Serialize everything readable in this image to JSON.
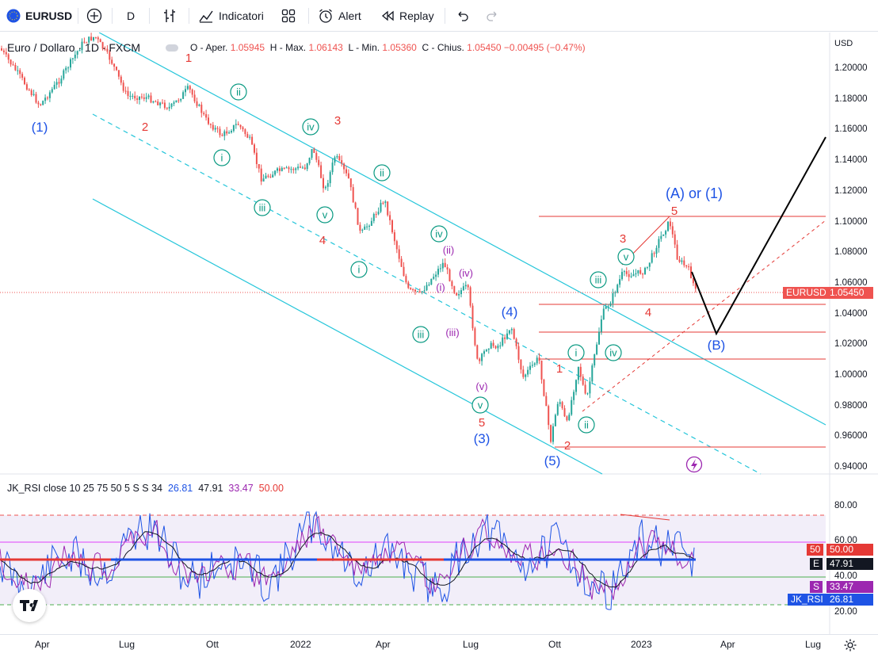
{
  "toolbar": {
    "symbol": "EURUSD",
    "interval": "D",
    "indicators_label": "Indicatori",
    "alert_label": "Alert",
    "replay_label": "Replay"
  },
  "legend": {
    "title": "Euro / Dollaro · 1D · FXCM",
    "o_label": "O - Aper.",
    "o_value": "1.05945",
    "h_label": "H - Max.",
    "h_value": "1.06143",
    "l_label": "L - Min.",
    "l_value": "1.05360",
    "c_label": "C - Chius.",
    "c_value": "1.05450",
    "change": "−0.00495 (−0.47%)"
  },
  "price_axis": {
    "currency": "USD",
    "labels": [
      "1.20000",
      "1.18000",
      "1.16000",
      "1.14000",
      "1.12000",
      "1.10000",
      "1.08000",
      "1.06000",
      "1.04000",
      "1.02000",
      "1.00000",
      "0.98000",
      "0.96000",
      "0.94000"
    ],
    "symbol_tag": "EURUSD",
    "price_tag": "1.05450"
  },
  "rsi": {
    "legend_name": "JK_RSI",
    "legend_params": "close 10 25 75 50 5 S S 34",
    "v1": "26.81",
    "v2": "47.91",
    "v3": "33.47",
    "v4": "50.00",
    "axis_labels": [
      "80.00",
      "60.00",
      "40.00",
      "20.00"
    ],
    "tag_50_label": "50",
    "tag_50_value": "50.00",
    "tag_e_label": "E",
    "tag_e_value": "47.91",
    "tag_s_label": "S",
    "tag_s_value": "33.47",
    "tag_jk_label": "JK_RSI",
    "tag_jk_value": "26.81"
  },
  "time_axis": [
    "Apr",
    "Lug",
    "Ott",
    "2022",
    "Apr",
    "Lug",
    "Ott",
    "2023",
    "Apr",
    "Lug"
  ],
  "colors": {
    "up": "#26a69a",
    "down": "#ef5350",
    "channel": "#26c6da",
    "wave_blue": "#1e53e5",
    "wave_red": "#e53935",
    "wave_green": "#089981",
    "wave_purple": "#9c27b0"
  },
  "wave_labels": {
    "blue": [
      "(1)",
      "(3)",
      "(4)",
      "(5)",
      "(B)"
    ],
    "blue_main": "(A) or (1)",
    "red": [
      "1",
      "2",
      "3",
      "4",
      "5",
      "1",
      "2",
      "3",
      "4",
      "5"
    ],
    "green": [
      "i",
      "ii",
      "iii",
      "iv",
      "v",
      "i",
      "ii",
      "iii",
      "iv",
      "v",
      "i",
      "ii",
      "iii",
      "iv",
      "v"
    ],
    "purple": [
      "(i)",
      "(ii)",
      "(iii)",
      "(iv)",
      "(v)"
    ]
  }
}
